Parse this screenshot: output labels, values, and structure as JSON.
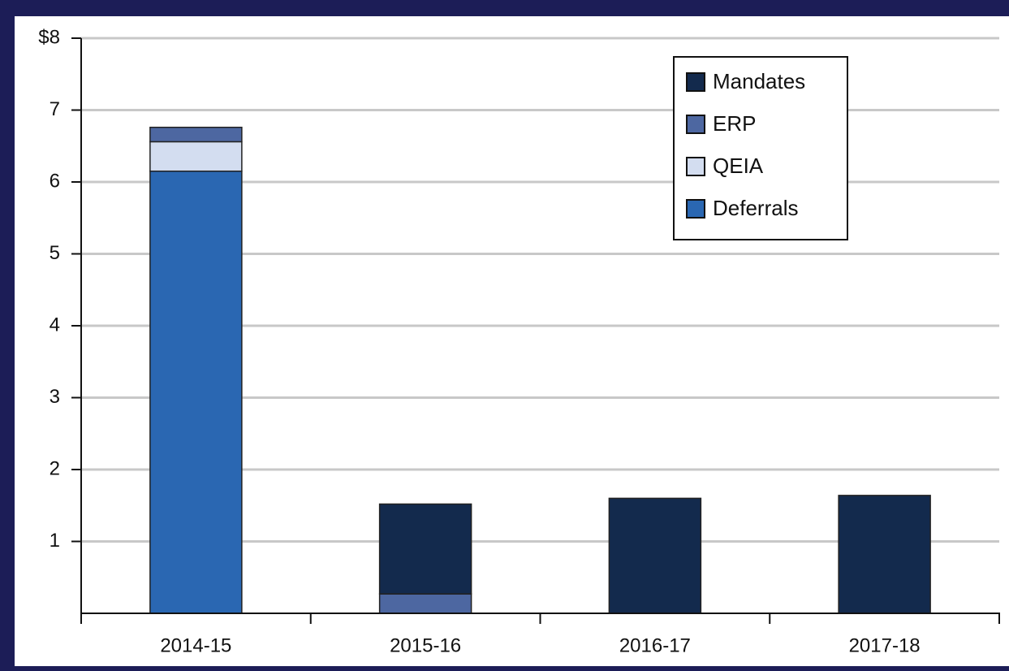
{
  "chart_data": {
    "type": "bar",
    "stacked": true,
    "categories": [
      "2014-15",
      "2015-16",
      "2016-17",
      "2017-18"
    ],
    "series": [
      {
        "name": "Mandates",
        "color": "#132a4d",
        "values": [
          0,
          1.25,
          1.6,
          1.64
        ]
      },
      {
        "name": "ERP",
        "color": "#4d67a1",
        "values": [
          0.2,
          0.27,
          0,
          0
        ]
      },
      {
        "name": "QEIA",
        "color": "#d3ddf0",
        "values": [
          0.41,
          0,
          0,
          0
        ]
      },
      {
        "name": "Deferrals",
        "color": "#2a67b2",
        "values": [
          6.15,
          0,
          0,
          0
        ]
      }
    ],
    "ylim": [
      0,
      8
    ],
    "yticks": [
      1,
      2,
      3,
      4,
      5,
      6,
      7,
      {
        "value": 8,
        "label": "$8"
      }
    ],
    "grid": true,
    "legend": "top-right"
  }
}
